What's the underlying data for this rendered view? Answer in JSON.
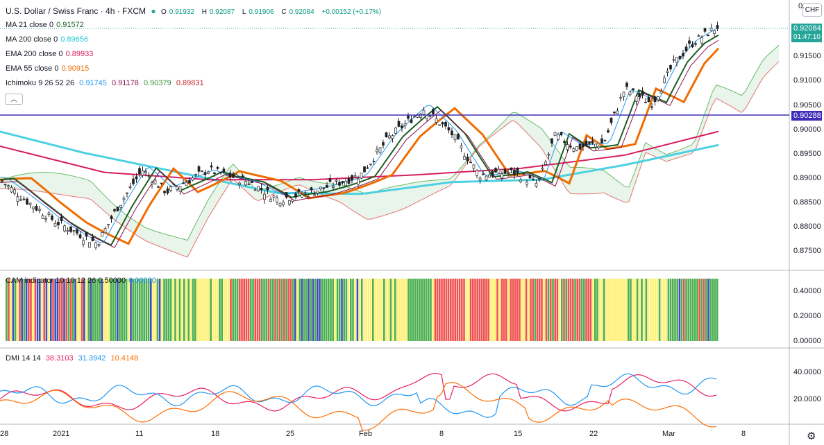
{
  "header": {
    "symbol": "U.S. Dollar / Swiss Franc · 4h · FXCM",
    "ohlc": [
      {
        "label": "O",
        "value": "0.91932"
      },
      {
        "label": "H",
        "value": "0.92087"
      },
      {
        "label": "L",
        "value": "0.91906"
      },
      {
        "label": "C",
        "value": "0.92084"
      }
    ],
    "change": "+0.00152 (+0.17%)"
  },
  "indicators": [
    {
      "label": "MA 21 close 0",
      "values": [
        "0.91572"
      ],
      "colors": [
        "#1b5e20"
      ]
    },
    {
      "label": "MA 200 close 0",
      "values": [
        "0.89656"
      ],
      "colors": [
        "#26c6da"
      ]
    },
    {
      "label": "EMA 200 close 0",
      "values": [
        "0.89933"
      ],
      "colors": [
        "#d81b60"
      ]
    },
    {
      "label": "EMA 55 close 0",
      "values": [
        "0.90915"
      ],
      "colors": [
        "#ef6c00"
      ]
    },
    {
      "label": "Ichimoku 9 26 52 26",
      "values": [
        "0.91745",
        "0.91178",
        "0.90379",
        "0.89831"
      ],
      "colors": [
        "#2196f3",
        "#880e4f",
        "#388e3c",
        "#c62828"
      ]
    }
  ],
  "currency_button": "CHF",
  "price_axis": {
    "labels": [
      "0.",
      "0.91500",
      "0.91000",
      "0.90500",
      "0.90000",
      "0.89500",
      "0.89000",
      "0.88500",
      "0.88000",
      "0.87500"
    ],
    "current_price": "0.92084",
    "countdown": "01:47:10",
    "hline_price": "0.90288"
  },
  "cam": {
    "title": "CAM indicator 10 10 12 26 0.50000",
    "value": "0.00000",
    "axis": [
      "0.40000",
      "0.20000",
      "0.00000"
    ],
    "colors": {
      "yellow": "#fff176",
      "red": "#ef5350",
      "green": "#4caf50",
      "blue": "#3f51b5"
    }
  },
  "dmi": {
    "title": "DMI 14 14",
    "values": [
      "38.3103",
      "31.3942",
      "10.4148"
    ],
    "colors": [
      "#e91e63",
      "#2196f3",
      "#ff6d00"
    ],
    "axis": [
      "40.0000",
      "20.0000"
    ]
  },
  "time_axis": [
    "28",
    "2021",
    "11",
    "18",
    "25",
    "Feb",
    "8",
    "15",
    "22",
    "Mar",
    "8"
  ],
  "colors": {
    "up": "#26a69a",
    "down": "#ef5350",
    "candle": "#1b1b1b",
    "hline": "#3f2db8"
  }
}
